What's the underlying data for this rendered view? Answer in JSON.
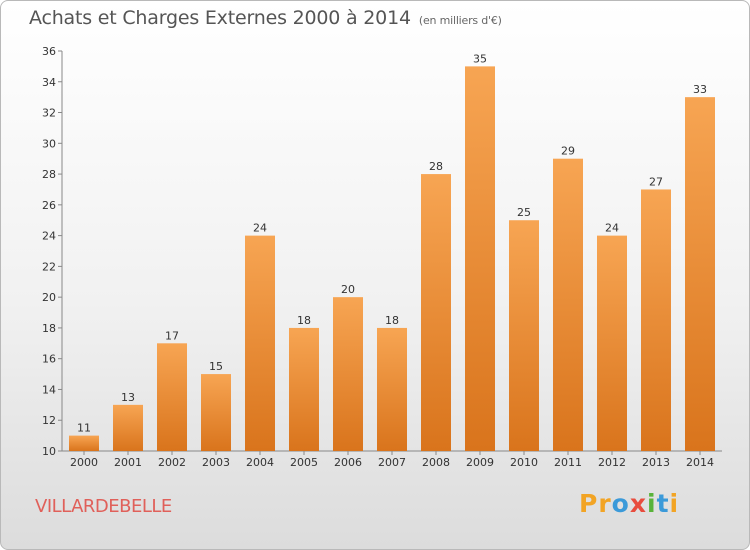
{
  "chart_data": {
    "type": "bar",
    "title": "Achats et Charges Externes 2000 à 2014",
    "subtitle": "(en milliers d'€)",
    "categories": [
      "2000",
      "2001",
      "2002",
      "2003",
      "2004",
      "2005",
      "2006",
      "2007",
      "2008",
      "2009",
      "2010",
      "2011",
      "2012",
      "2013",
      "2014"
    ],
    "values": [
      11,
      13,
      17,
      15,
      24,
      18,
      20,
      18,
      28,
      35,
      25,
      29,
      24,
      27,
      33
    ],
    "ylim": [
      10,
      36
    ],
    "yticks": [
      10,
      12,
      14,
      16,
      18,
      20,
      22,
      24,
      26,
      28,
      30,
      32,
      34,
      36
    ],
    "xlabel": "",
    "ylabel": "",
    "grid": false,
    "bar_color": "#f0903a"
  },
  "footer": {
    "commune": "VILLARDEBELLE",
    "logo_letters": [
      "P",
      "r",
      "o",
      "x",
      "i",
      "t",
      "i"
    ],
    "logo_colors": [
      "#f2a424",
      "#f2a424",
      "#3b9ad9",
      "#e84c3d",
      "#59b33a",
      "#3b9ad9",
      "#f2a424"
    ]
  }
}
